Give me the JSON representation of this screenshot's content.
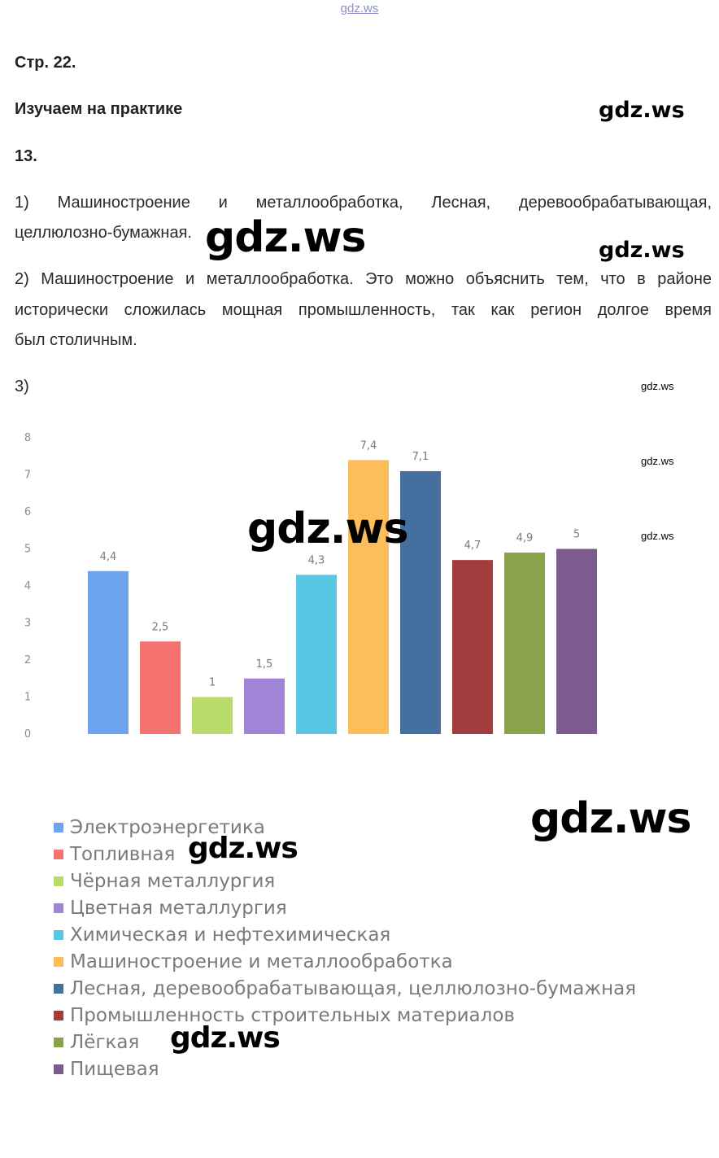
{
  "watermark_text": "gdz.ws",
  "page_ref": "Стр. 22.",
  "section_title": "Изучаем на практике",
  "task_number": "13.",
  "answers": {
    "a1_line1": "1) Машиностроение и металлообработка, Лесная, деревообрабатывающая,",
    "a1_line2": "целлюлозно-бумажная.",
    "a2_line1": "2) Машиностроение и металлообработка. Это можно объяснить тем, что в районе",
    "a2_line2": "исторически сложилась мощная промышленность, так как регион долгое время",
    "a2_line3": "был столичным.",
    "a3_label": "3)"
  },
  "chart_data": {
    "type": "bar",
    "categories": [
      "Электроэнергетика",
      "Топливная",
      "Чёрная металлургия",
      "Цветная металлургия",
      "Химическая и нефтехимическая",
      "Машиностроение и металлообработка",
      "Лесная, деревообрабатывающая, целлюлозно-бумажная",
      "Промышленность строительных материалов",
      "Лёгкая",
      "Пищевая"
    ],
    "values": [
      4.4,
      2.5,
      1,
      1.5,
      4.3,
      7.4,
      7.1,
      4.7,
      4.9,
      5
    ],
    "value_labels": [
      "4,4",
      "2,5",
      "1",
      "1,5",
      "4,3",
      "7,4",
      "7,1",
      "4,7",
      "4,9",
      "5"
    ],
    "colors": [
      "#6ea3ee",
      "#f47371",
      "#b8dc6a",
      "#a184d6",
      "#57c7e3",
      "#fdbd5b",
      "#456f9f",
      "#a33d3d",
      "#8aa24a",
      "#7c5b8e"
    ],
    "ylim": [
      0,
      8
    ],
    "yticks": [
      "0",
      "1",
      "2",
      "3",
      "4",
      "5",
      "6",
      "7",
      "8"
    ],
    "grid": false,
    "legend_position": "bottom"
  }
}
